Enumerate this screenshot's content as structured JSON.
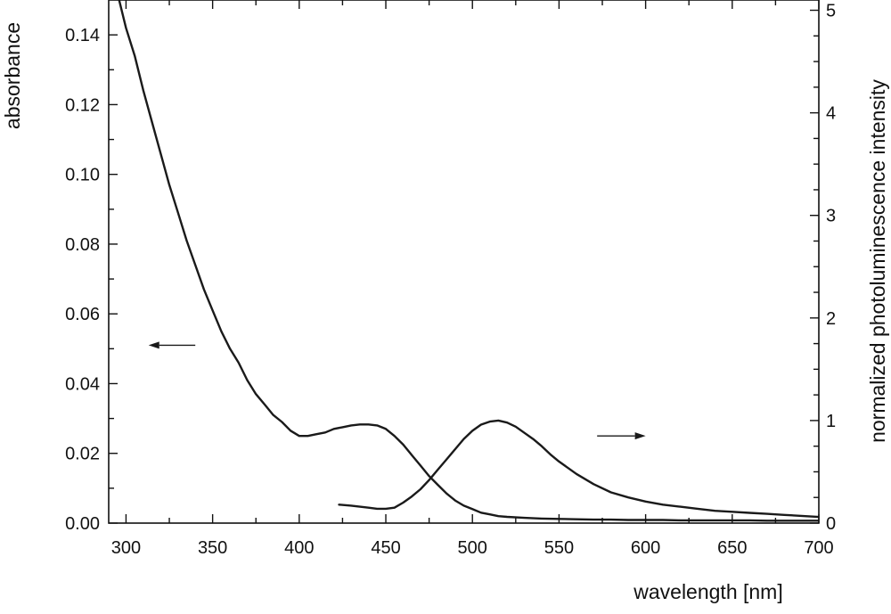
{
  "chart_data": {
    "type": "line",
    "title": "",
    "xlabel": "wavelength [nm]",
    "ylabel_left": "absorbance",
    "ylabel_right": "normalized photoluminescence intensity",
    "xlim": [
      290,
      700
    ],
    "ylim_left": [
      0,
      0.15
    ],
    "ylim_right": [
      0,
      5.1
    ],
    "grid": false,
    "x_ticks": [
      300,
      350,
      400,
      450,
      500,
      550,
      600,
      650,
      700
    ],
    "x_tick_labels": [
      "300",
      "350",
      "400",
      "450",
      "500",
      "550",
      "600",
      "650",
      "700"
    ],
    "y_left_ticks": [
      0,
      0.02,
      0.04,
      0.06,
      0.08,
      0.1,
      0.12,
      0.14
    ],
    "y_left_tick_labels": [
      "0.00",
      "0.02",
      "0.04",
      "0.06",
      "0.08",
      "0.10",
      "0.12",
      "0.14"
    ],
    "y_right_ticks": [
      0,
      1,
      2,
      3,
      4,
      5
    ],
    "y_right_tick_labels": [
      "0",
      "1",
      "2",
      "3",
      "4",
      "5"
    ],
    "series": [
      {
        "axis": "left",
        "x": [
          296,
          300,
          305,
          310,
          315,
          320,
          325,
          330,
          335,
          340,
          345,
          350,
          355,
          360,
          365,
          370,
          375,
          380,
          385,
          390,
          395,
          400,
          405,
          410,
          415,
          420,
          425,
          430,
          435,
          440,
          445,
          450,
          455,
          460,
          465,
          470,
          475,
          480,
          485,
          490,
          495,
          500,
          505,
          510,
          515,
          520,
          530,
          540,
          550,
          560,
          570,
          580,
          590,
          600,
          610,
          620,
          630,
          640,
          650,
          660,
          670,
          680,
          690,
          700
        ],
        "y": [
          0.15,
          0.142,
          0.134,
          0.124,
          0.115,
          0.106,
          0.097,
          0.089,
          0.081,
          0.074,
          0.067,
          0.061,
          0.055,
          0.05,
          0.046,
          0.041,
          0.037,
          0.034,
          0.031,
          0.029,
          0.0265,
          0.025,
          0.025,
          0.0255,
          0.026,
          0.027,
          0.0275,
          0.028,
          0.0283,
          0.0283,
          0.028,
          0.027,
          0.025,
          0.0225,
          0.0195,
          0.0165,
          0.0135,
          0.011,
          0.0085,
          0.0065,
          0.005,
          0.004,
          0.003,
          0.0025,
          0.002,
          0.0018,
          0.0015,
          0.0013,
          0.0012,
          0.0011,
          0.001,
          0.001,
          0.0009,
          0.0009,
          0.0009,
          0.0008,
          0.0008,
          0.0008,
          0.0008,
          0.0008,
          0.0007,
          0.0007,
          0.0007,
          0.0007
        ]
      },
      {
        "axis": "right",
        "x": [
          423,
          430,
          435,
          440,
          445,
          450,
          455,
          460,
          465,
          470,
          475,
          480,
          485,
          490,
          495,
          500,
          505,
          510,
          515,
          520,
          525,
          530,
          535,
          540,
          545,
          550,
          560,
          570,
          580,
          590,
          600,
          610,
          620,
          630,
          640,
          650,
          660,
          670,
          680,
          690,
          700
        ],
        "y": [
          0.18,
          0.17,
          0.16,
          0.15,
          0.14,
          0.14,
          0.15,
          0.2,
          0.26,
          0.33,
          0.42,
          0.52,
          0.62,
          0.72,
          0.82,
          0.9,
          0.96,
          0.99,
          1.0,
          0.98,
          0.94,
          0.88,
          0.82,
          0.75,
          0.67,
          0.6,
          0.48,
          0.38,
          0.3,
          0.25,
          0.21,
          0.18,
          0.16,
          0.14,
          0.12,
          0.11,
          0.1,
          0.09,
          0.08,
          0.07,
          0.06
        ]
      }
    ],
    "annotations": [
      {
        "type": "arrow",
        "direction": "left",
        "points_to": "left axis",
        "x": [
          340,
          313
        ],
        "y_left": 0.051
      },
      {
        "type": "arrow",
        "direction": "right",
        "points_to": "right axis",
        "x": [
          572,
          600
        ],
        "y_left": 0.025
      }
    ]
  }
}
